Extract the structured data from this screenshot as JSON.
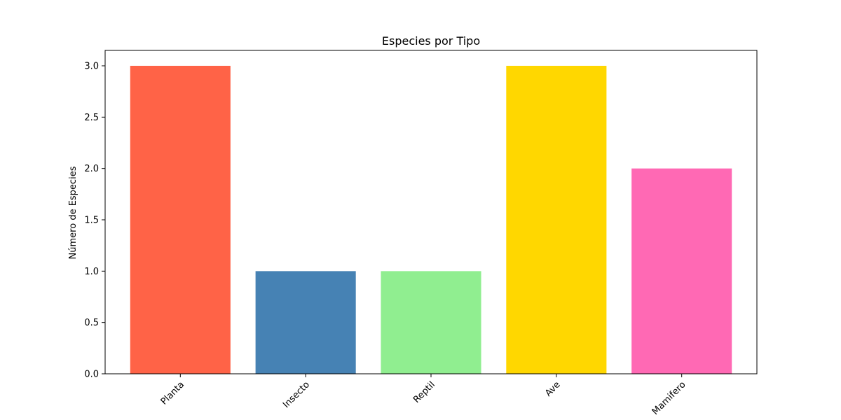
{
  "chart_data": {
    "type": "bar",
    "title": "Especies por Tipo",
    "xlabel": "",
    "ylabel": "Número de Especies",
    "categories": [
      "Planta",
      "Insecto",
      "Reptil",
      "Ave",
      "Mamifero"
    ],
    "values": [
      3,
      1,
      1,
      3,
      2
    ],
    "colors": [
      "#ff6347",
      "#4682b4",
      "#90ee90",
      "#ffd700",
      "#ff69b4"
    ],
    "ylim": [
      0,
      3.15
    ],
    "yticks": [
      "0.0",
      "0.5",
      "1.0",
      "1.5",
      "2.0",
      "2.5",
      "3.0"
    ],
    "ytick_values": [
      0,
      0.5,
      1.0,
      1.5,
      2.0,
      2.5,
      3.0
    ],
    "xtick_rotation_deg": 45,
    "grid": false,
    "legend": "none"
  }
}
